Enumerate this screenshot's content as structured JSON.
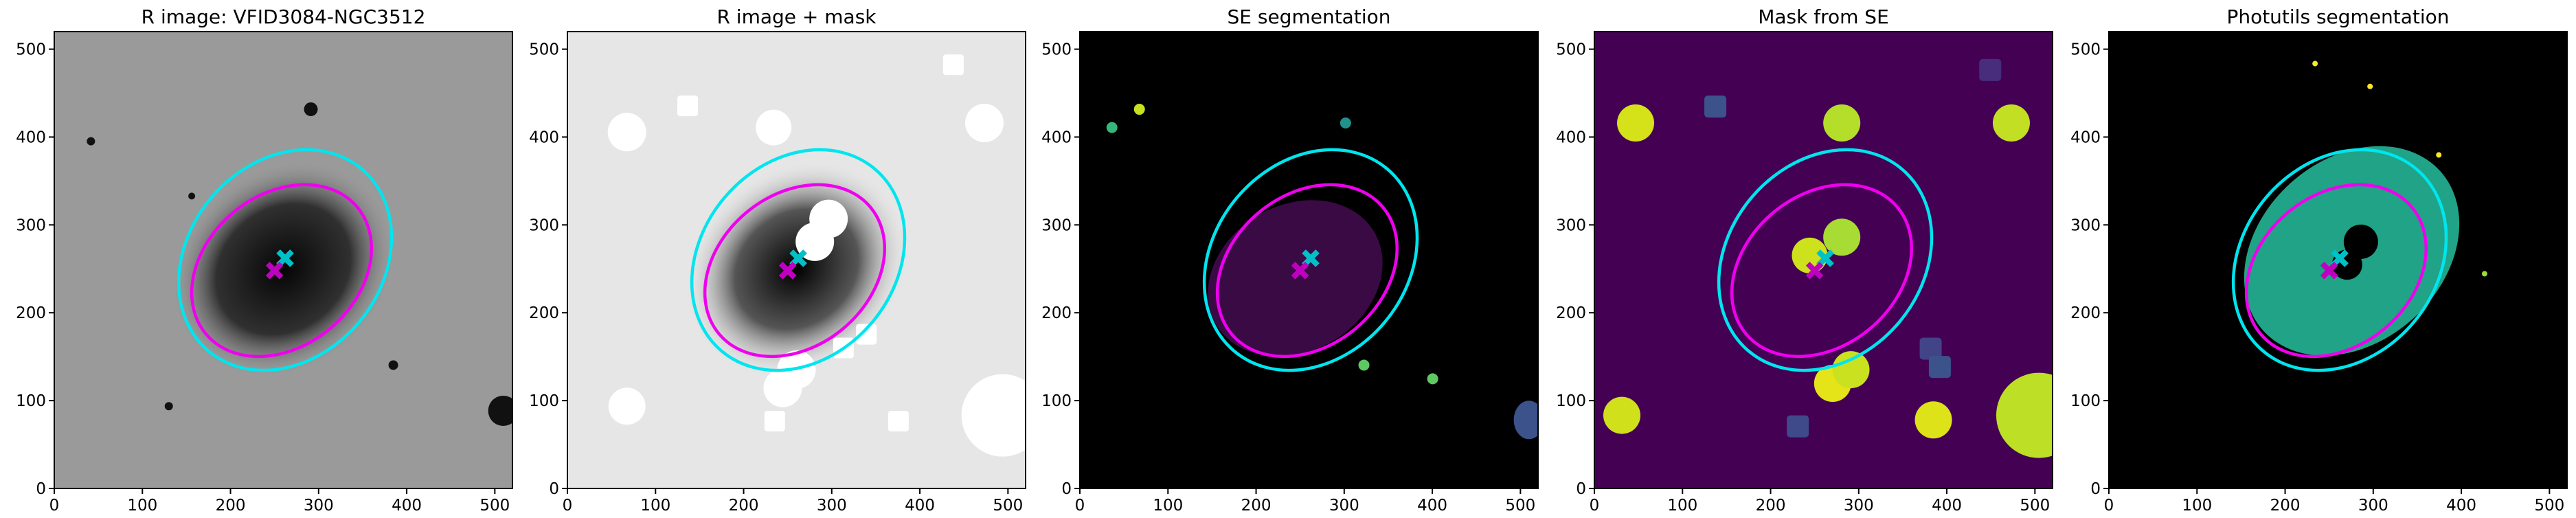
{
  "chart_data": [
    {
      "type": "image",
      "title": "R image: VFID3084-NGC3512",
      "background": "#9a9a9a",
      "xlim": [
        0,
        520
      ],
      "ylim": [
        0,
        520
      ],
      "xticks": [
        0,
        100,
        200,
        300,
        400,
        500
      ],
      "yticks": [
        0,
        100,
        200,
        300,
        400,
        500
      ],
      "ellipses": [
        {
          "color": "#00e5ee",
          "cx": 262,
          "cy": 260,
          "a": 135,
          "b": 110,
          "angle": 50
        },
        {
          "color": "#ee00ee",
          "cx": 258,
          "cy": 248,
          "a": 112,
          "b": 86,
          "angle": 40
        }
      ],
      "markers": [
        {
          "color": "#00c0c8",
          "x": 262,
          "y": 262
        },
        {
          "color": "#c000c0",
          "x": 250,
          "y": 248
        }
      ]
    },
    {
      "type": "image",
      "title": "R image + mask",
      "background": "#e6e6e6",
      "xlim": [
        0,
        520
      ],
      "ylim": [
        0,
        520
      ],
      "xticks": [
        0,
        100,
        200,
        300,
        400,
        500
      ],
      "yticks": [
        0,
        100,
        200,
        300,
        400,
        500
      ],
      "ellipses": [
        {
          "color": "#00e5ee",
          "cx": 262,
          "cy": 260,
          "a": 135,
          "b": 110,
          "angle": 50
        },
        {
          "color": "#ee00ee",
          "cx": 258,
          "cy": 248,
          "a": 112,
          "b": 86,
          "angle": 40
        }
      ],
      "markers": [
        {
          "color": "#00c0c8",
          "x": 262,
          "y": 262
        },
        {
          "color": "#c000c0",
          "x": 250,
          "y": 248
        }
      ]
    },
    {
      "type": "image",
      "title": "SE segmentation",
      "background": "#000000",
      "xlim": [
        0,
        520
      ],
      "ylim": [
        0,
        520
      ],
      "xticks": [
        0,
        100,
        200,
        300,
        400,
        500
      ],
      "yticks": [
        0,
        100,
        200,
        300,
        400,
        500
      ],
      "ellipses": [
        {
          "color": "#00e5ee",
          "cx": 262,
          "cy": 260,
          "a": 135,
          "b": 110,
          "angle": 50
        },
        {
          "color": "#ee00ee",
          "cx": 258,
          "cy": 248,
          "a": 112,
          "b": 86,
          "angle": 40
        }
      ],
      "markers": [
        {
          "color": "#00c0c8",
          "x": 262,
          "y": 262
        },
        {
          "color": "#c000c0",
          "x": 250,
          "y": 248
        }
      ]
    },
    {
      "type": "image",
      "title": "Mask from SE",
      "background": "#440154",
      "xlim": [
        0,
        520
      ],
      "ylim": [
        0,
        520
      ],
      "xticks": [
        0,
        100,
        200,
        300,
        400,
        500
      ],
      "yticks": [
        0,
        100,
        200,
        300,
        400,
        500
      ],
      "ellipses": [
        {
          "color": "#00e5ee",
          "cx": 262,
          "cy": 260,
          "a": 135,
          "b": 110,
          "angle": 50
        },
        {
          "color": "#ee00ee",
          "cx": 258,
          "cy": 248,
          "a": 112,
          "b": 86,
          "angle": 40
        }
      ],
      "markers": [
        {
          "color": "#00c0c8",
          "x": 262,
          "y": 262
        },
        {
          "color": "#c000c0",
          "x": 250,
          "y": 248
        }
      ]
    },
    {
      "type": "image",
      "title": "Photutils segmentation",
      "background": "#000000",
      "xlim": [
        0,
        520
      ],
      "ylim": [
        0,
        520
      ],
      "xticks": [
        0,
        100,
        200,
        300,
        400,
        500
      ],
      "yticks": [
        0,
        100,
        200,
        300,
        400,
        500
      ],
      "ellipses": [
        {
          "color": "#00e5ee",
          "cx": 262,
          "cy": 260,
          "a": 135,
          "b": 110,
          "angle": 50
        },
        {
          "color": "#ee00ee",
          "cx": 258,
          "cy": 248,
          "a": 112,
          "b": 86,
          "angle": 40
        }
      ],
      "markers": [
        {
          "color": "#00c0c8",
          "x": 262,
          "y": 262
        },
        {
          "color": "#c000c0",
          "x": 250,
          "y": 248
        }
      ]
    }
  ]
}
